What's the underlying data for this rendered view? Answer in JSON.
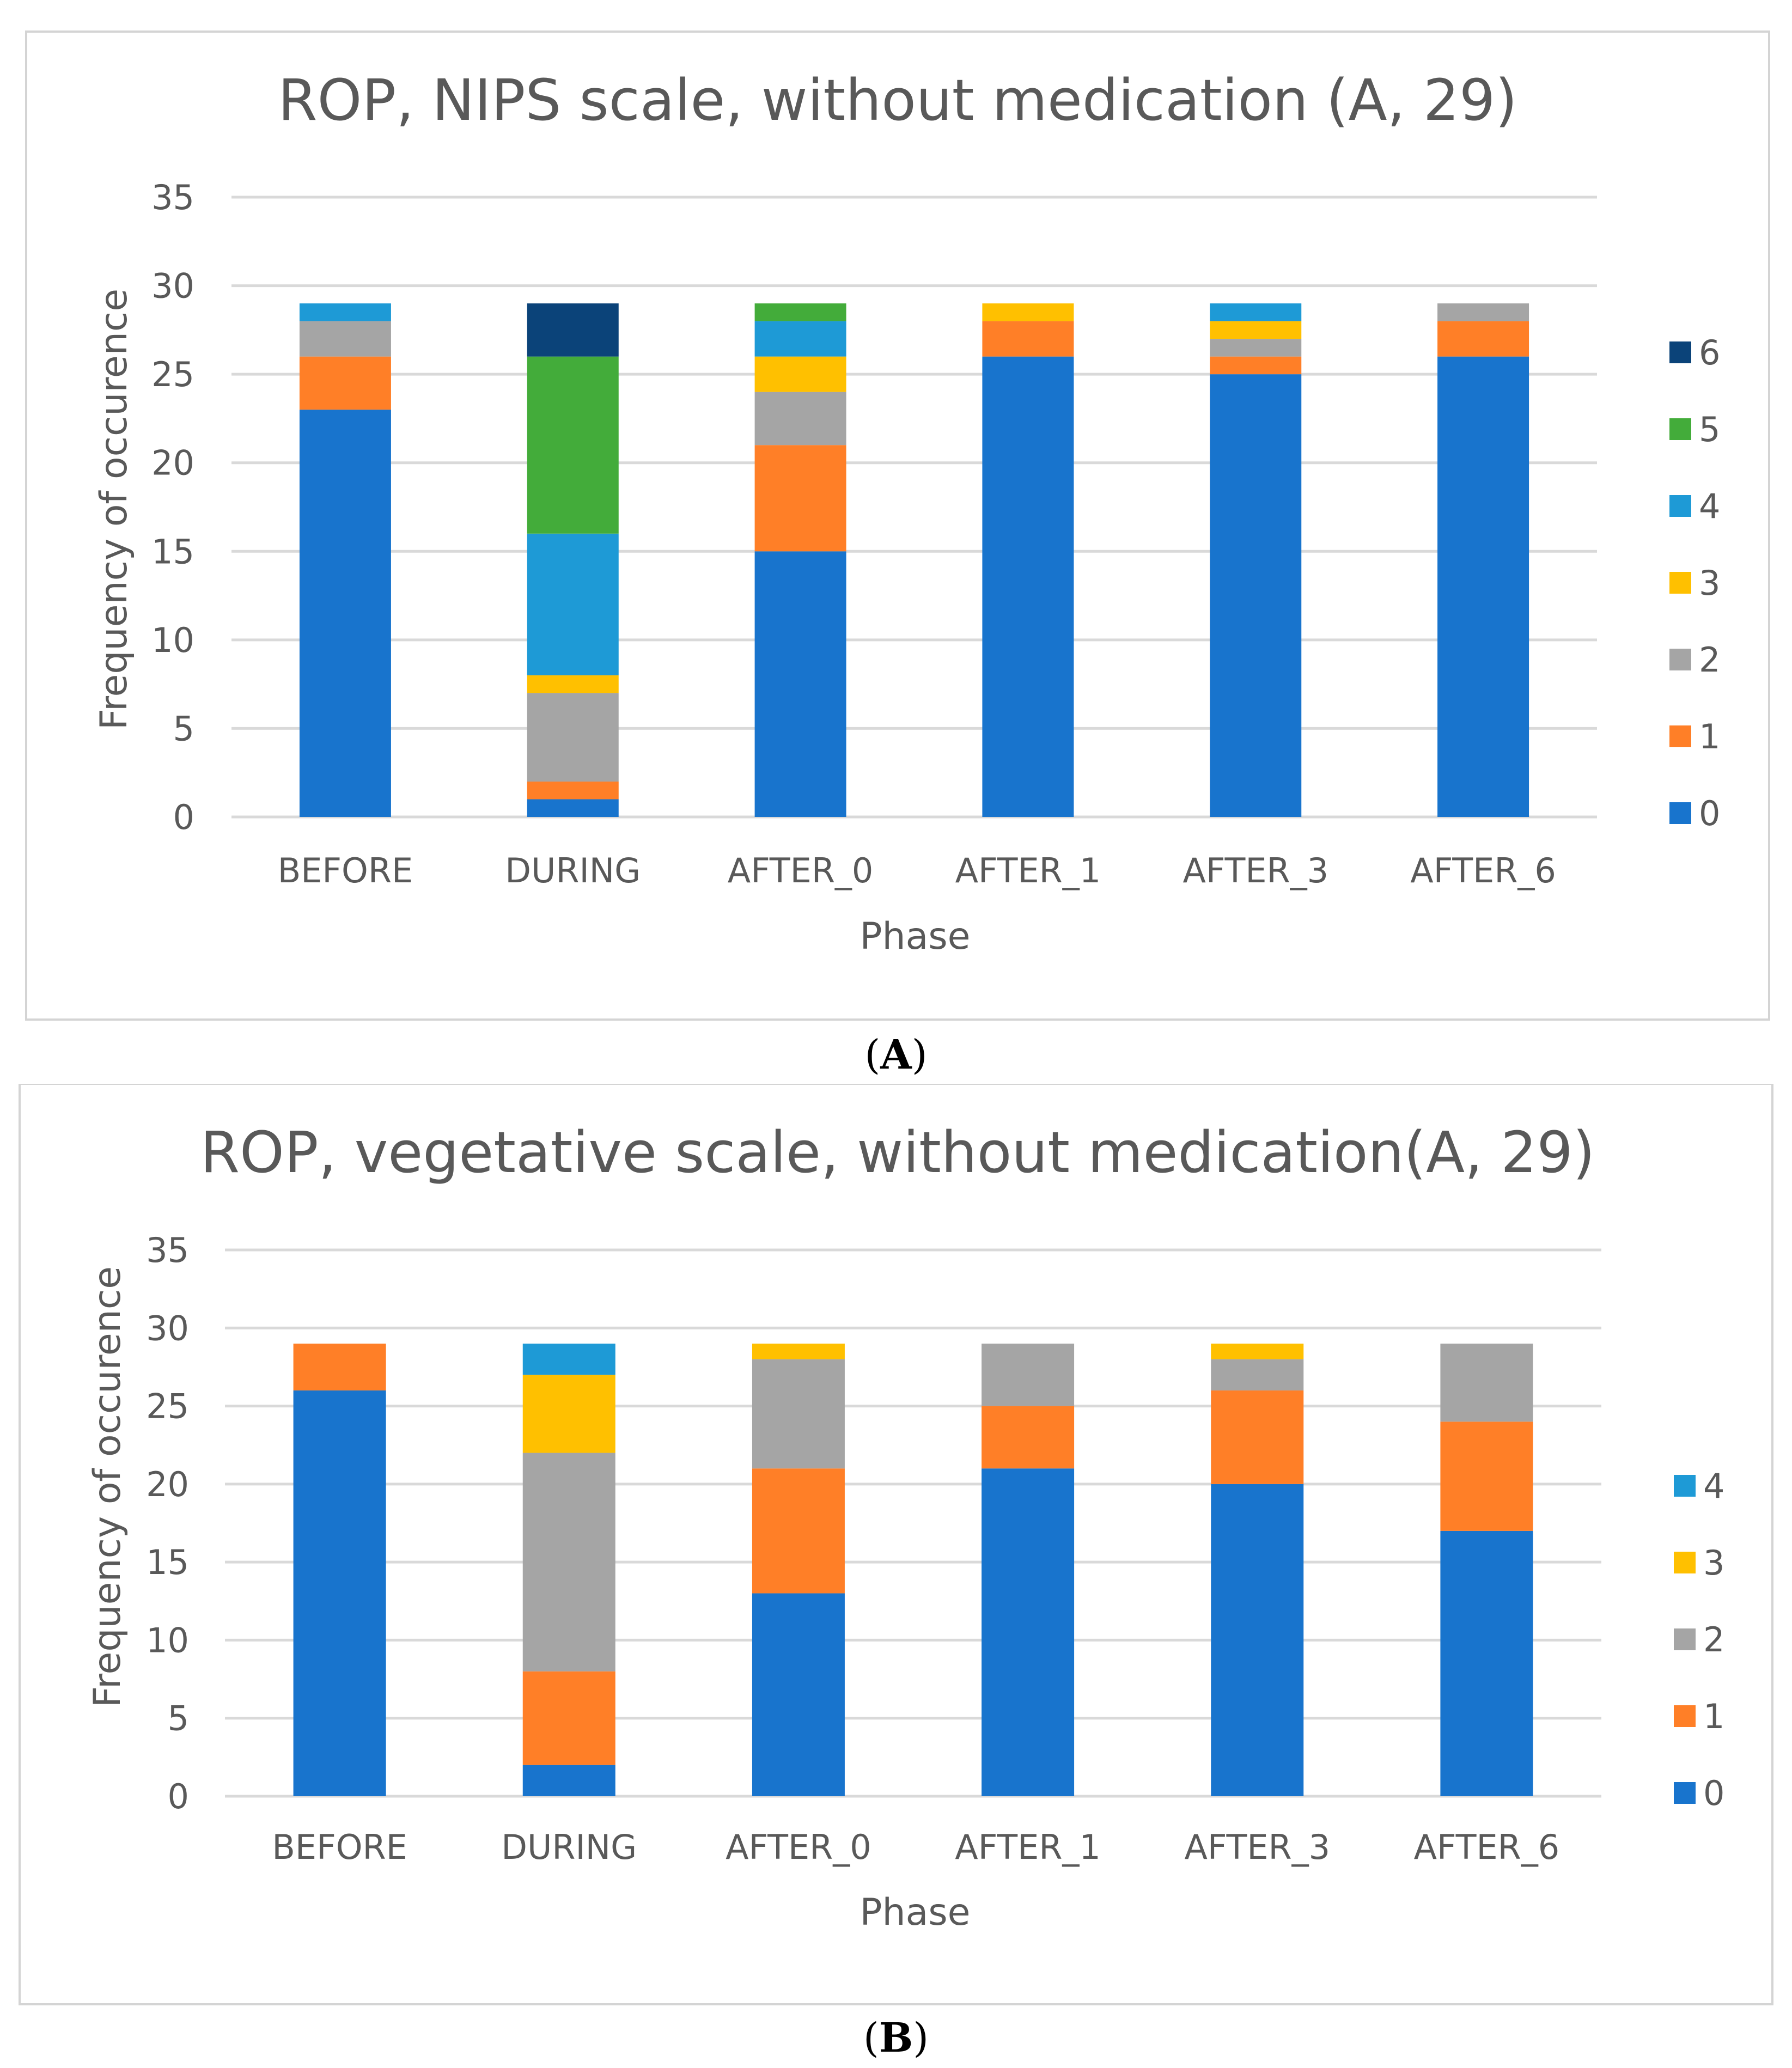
{
  "chart_data": [
    {
      "type": "bar",
      "stacked": true,
      "title": "ROP, NIPS scale, without medication (A, 29)",
      "xlabel": "Phase",
      "ylabel": "Frequency of occurence",
      "ylim": [
        0,
        35
      ],
      "yticks": [
        0,
        5,
        10,
        15,
        20,
        25,
        30,
        35
      ],
      "grid": true,
      "legend_position": "right",
      "caption": {
        "open": "(",
        "letter": "A",
        "close": ")"
      },
      "categories": [
        "BEFORE",
        "DURING",
        "AFTER_0",
        "AFTER_1",
        "AFTER_3",
        "AFTER_6"
      ],
      "series": [
        {
          "name": "0",
          "color": "#1874CD",
          "values": [
            23,
            1,
            15,
            26,
            25,
            26
          ]
        },
        {
          "name": "1",
          "color": "#FF7F27",
          "values": [
            3,
            1,
            6,
            2,
            1,
            2
          ]
        },
        {
          "name": "2",
          "color": "#A5A5A5",
          "values": [
            2,
            5,
            3,
            0,
            1,
            1
          ]
        },
        {
          "name": "3",
          "color": "#FFC000",
          "values": [
            0,
            1,
            2,
            1,
            1,
            0
          ]
        },
        {
          "name": "4",
          "color": "#1E9AD6",
          "values": [
            1,
            8,
            2,
            0,
            1,
            0
          ]
        },
        {
          "name": "5",
          "color": "#43AC3A",
          "values": [
            0,
            10,
            1,
            0,
            0,
            0
          ]
        },
        {
          "name": "6",
          "color": "#0B4379",
          "values": [
            0,
            3,
            0,
            0,
            0,
            0
          ]
        }
      ]
    },
    {
      "type": "bar",
      "stacked": true,
      "title": "ROP, vegetative scale, without medication(A, 29)",
      "xlabel": "Phase",
      "ylabel": "Frequency of occurence",
      "ylim": [
        0,
        35
      ],
      "yticks": [
        0,
        5,
        10,
        15,
        20,
        25,
        30,
        35
      ],
      "grid": true,
      "legend_position": "right",
      "caption": {
        "open": "(",
        "letter": "B",
        "close": ")"
      },
      "categories": [
        "BEFORE",
        "DURING",
        "AFTER_0",
        "AFTER_1",
        "AFTER_3",
        "AFTER_6"
      ],
      "series": [
        {
          "name": "0",
          "color": "#1874CD",
          "values": [
            26,
            2,
            13,
            21,
            20,
            17
          ]
        },
        {
          "name": "1",
          "color": "#FF7F27",
          "values": [
            3,
            6,
            8,
            4,
            6,
            7
          ]
        },
        {
          "name": "2",
          "color": "#A5A5A5",
          "values": [
            0,
            14,
            7,
            4,
            2,
            5
          ]
        },
        {
          "name": "3",
          "color": "#FFC000",
          "values": [
            0,
            5,
            1,
            0,
            1,
            0
          ]
        },
        {
          "name": "4",
          "color": "#1E9AD6",
          "values": [
            0,
            2,
            0,
            0,
            0,
            0
          ]
        }
      ]
    }
  ]
}
